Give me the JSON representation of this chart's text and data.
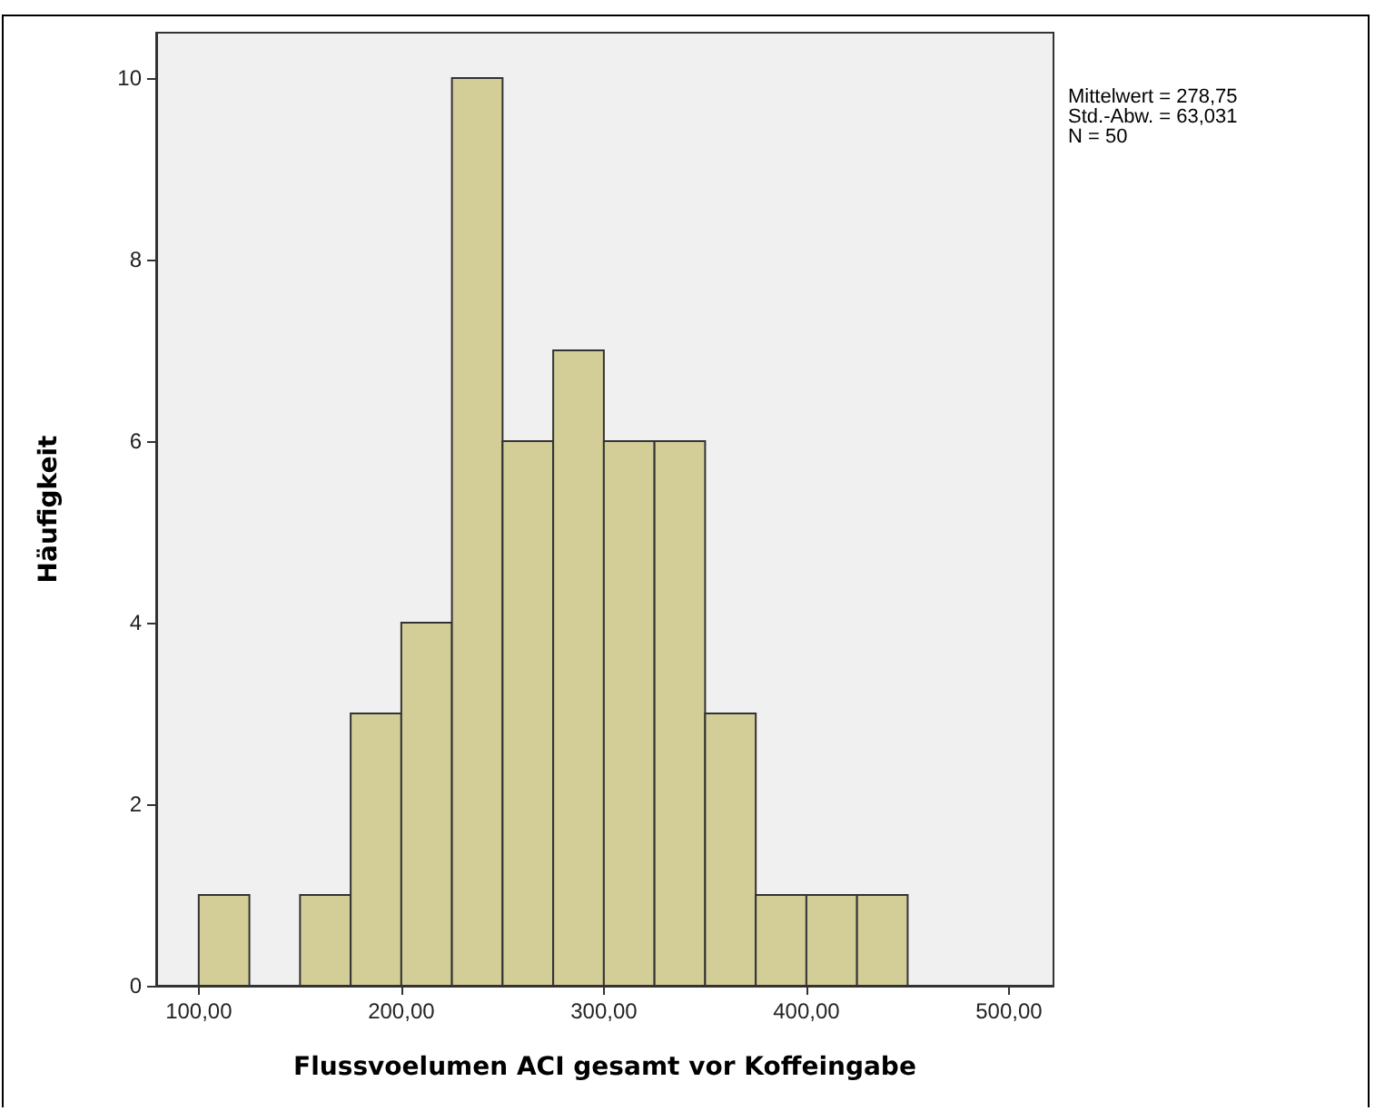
{
  "chart_data": {
    "type": "histogram",
    "xlabel": "Flussvoelumen ACI gesamt vor Koffeingabe",
    "ylabel": "Häufigkeit",
    "bins": [
      100,
      125,
      150,
      175,
      200,
      225,
      250,
      275,
      300,
      325,
      350,
      375,
      400,
      425,
      450
    ],
    "values": [
      1,
      0,
      1,
      3,
      4,
      10,
      6,
      7,
      6,
      6,
      3,
      1,
      1,
      1
    ],
    "color": "#d3ce97",
    "xlim": [
      79,
      522
    ],
    "xticks": [
      {
        "value": 100,
        "label": "100,00"
      },
      {
        "value": 200,
        "label": "200,00"
      },
      {
        "value": 300,
        "label": "300,00"
      },
      {
        "value": 400,
        "label": "400,00"
      },
      {
        "value": 500,
        "label": "500,00"
      }
    ],
    "ylim": [
      0,
      10.5
    ],
    "yticks": [
      0,
      2,
      4,
      6,
      8,
      10
    ],
    "grid": false,
    "annotations": [
      "Mittelwert = 278,75",
      "Std.-Abw. = 63,031",
      "N = 50"
    ]
  }
}
